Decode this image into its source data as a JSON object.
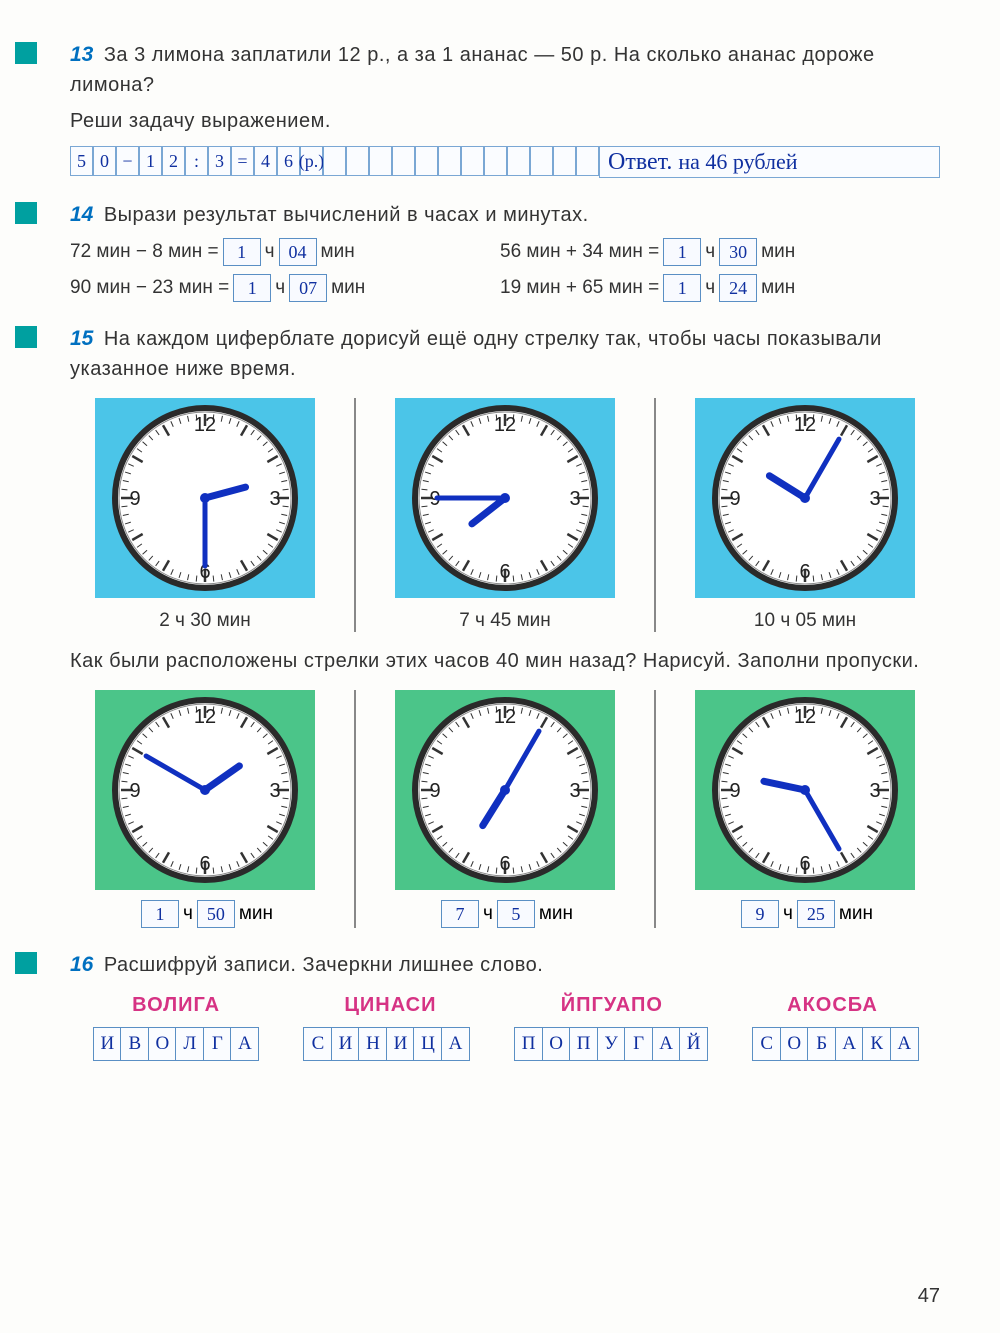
{
  "pageNumber": "47",
  "problems": {
    "p13": {
      "num": "13",
      "text": "За 3 лимона заплатили 12 р., а за 1 ананас — 50 р. На сколько ананас дороже лимона?",
      "instruction": "Реши задачу выражением.",
      "solution": [
        "5",
        "0",
        "−",
        "1",
        "2",
        ":",
        "3",
        "=",
        "4",
        "6",
        "(р.)"
      ],
      "answerLabel": "Ответ.",
      "answerText": "на 46 рублей"
    },
    "p14": {
      "num": "14",
      "text": "Вырази результат вычислений в часах и минутах.",
      "rows": [
        {
          "left": "72 мин − 8 мин =",
          "h": "1",
          "m": "04",
          "right": "56 мин + 34 мин =",
          "h2": "1",
          "m2": "30"
        },
        {
          "left": "90 мин − 23 мин =",
          "h": "1",
          "m": "07",
          "right": "19 мин + 65 мин =",
          "h2": "1",
          "m2": "24"
        }
      ],
      "unitH": "ч",
      "unitM": "мин"
    },
    "p15": {
      "num": "15",
      "text": "На каждом циферблате дорисуй ещё одну стрелку так, чтобы часы показывали указанное ниже время.",
      "clocks1": [
        {
          "label": "2 ч 30 мин",
          "hourAngle": 75,
          "minAngle": 180,
          "bg": "blue"
        },
        {
          "label": "7 ч 45 мин",
          "hourAngle": 232,
          "minAngle": 270,
          "bg": "blue"
        },
        {
          "label": "10 ч 05 мин",
          "hourAngle": 302,
          "minAngle": 30,
          "bg": "blue"
        }
      ],
      "text2": "Как были расположены стрелки этих часов 40 мин назад? Нарисуй. Заполни пропуски.",
      "clocks2": [
        {
          "h": "1",
          "m": "50",
          "hourAngle": 55,
          "minAngle": 300,
          "bg": "green"
        },
        {
          "h": "7",
          "m": "5",
          "hourAngle": 212,
          "minAngle": 30,
          "bg": "green"
        },
        {
          "h": "9",
          "m": "25",
          "hourAngle": 282,
          "minAngle": 150,
          "bg": "green"
        }
      ]
    },
    "p16": {
      "num": "16",
      "text": "Расшифруй записи. Зачеркни лишнее слово.",
      "ciphers": [
        "ВОЛИГА",
        "ЦИНАСИ",
        "ЙПГУАПО",
        "АКОСБА"
      ],
      "answers": [
        [
          "И",
          "В",
          "О",
          "Л",
          "Г",
          "А"
        ],
        [
          "С",
          "И",
          "Н",
          "И",
          "Ц",
          "А"
        ],
        [
          "П",
          "О",
          "П",
          "У",
          "Г",
          "А",
          "Й"
        ],
        [
          "С",
          "О",
          "Б",
          "А",
          "К",
          "А"
        ]
      ]
    }
  },
  "clockFace": {
    "numbers": [
      "12",
      "3",
      "6",
      "9"
    ],
    "faceColor": "#ffffff",
    "rimColor": "#2a2a2a",
    "handColor": "#1030c0",
    "tickColor": "#333"
  }
}
